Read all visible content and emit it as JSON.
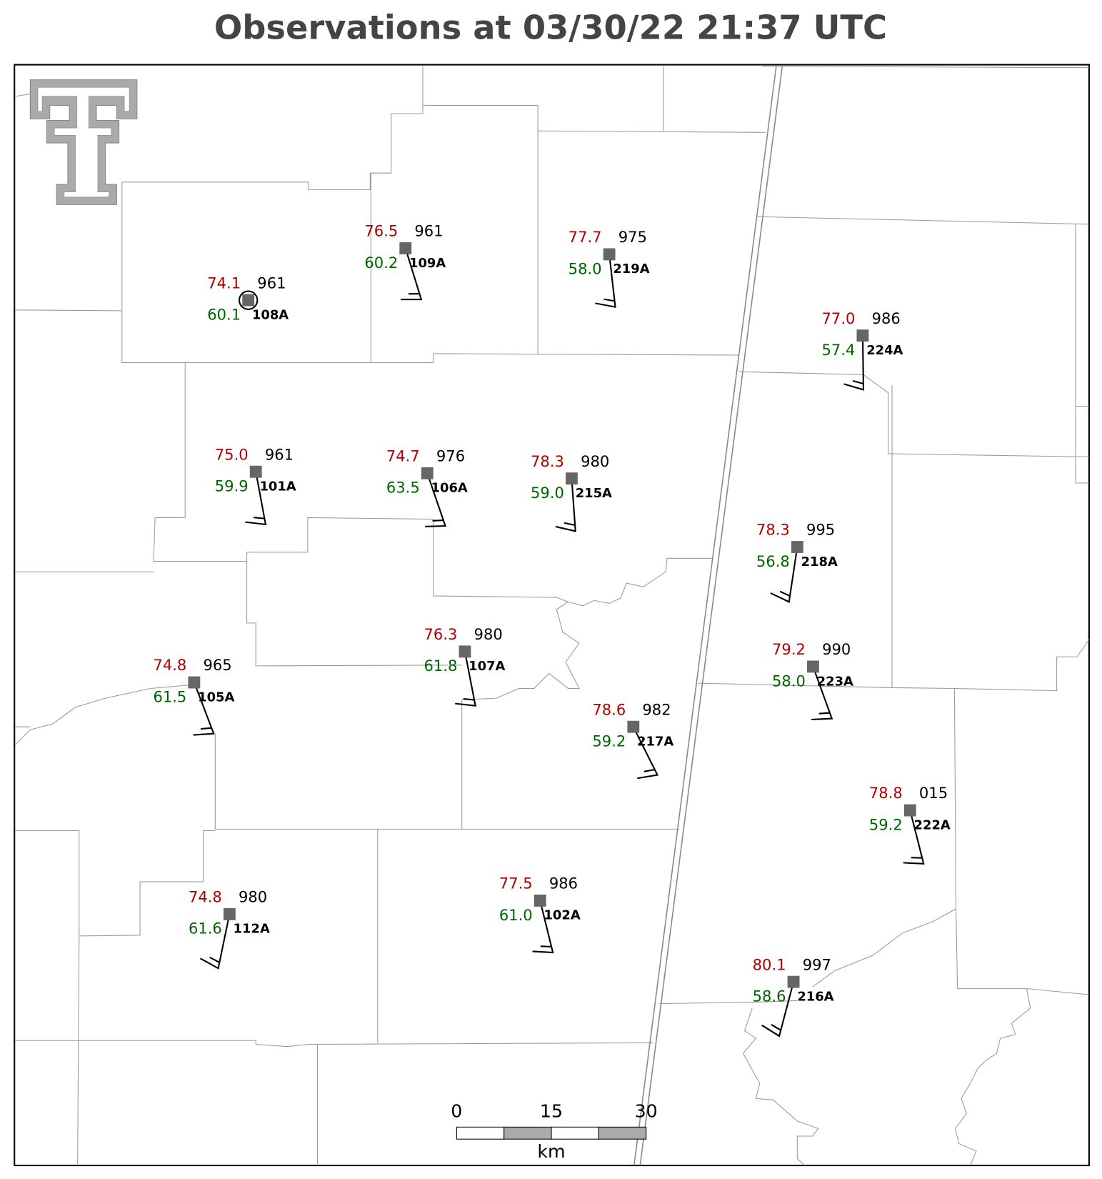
{
  "title": "Observations at 03/30/22 21:37 UTC",
  "stations": [
    {
      "id": "108A",
      "temperature": "74.1",
      "dewpoint": "60.1",
      "pressure": "961"
    },
    {
      "id": "109A",
      "temperature": "76.5",
      "dewpoint": "60.2",
      "pressure": "961"
    },
    {
      "id": "219A",
      "temperature": "77.7",
      "dewpoint": "58.0",
      "pressure": "975"
    },
    {
      "id": "224A",
      "temperature": "77.0",
      "dewpoint": "57.4",
      "pressure": "986"
    },
    {
      "id": "101A",
      "temperature": "75.0",
      "dewpoint": "59.9",
      "pressure": "961"
    },
    {
      "id": "106A",
      "temperature": "74.7",
      "dewpoint": "63.5",
      "pressure": "976"
    },
    {
      "id": "215A",
      "temperature": "78.3",
      "dewpoint": "59.0",
      "pressure": "980"
    },
    {
      "id": "218A",
      "temperature": "78.3",
      "dewpoint": "56.8",
      "pressure": "995"
    },
    {
      "id": "223A",
      "temperature": "79.2",
      "dewpoint": "58.0",
      "pressure": "990"
    },
    {
      "id": "107A",
      "temperature": "76.3",
      "dewpoint": "61.8",
      "pressure": "980"
    },
    {
      "id": "105A",
      "temperature": "74.8",
      "dewpoint": "61.5",
      "pressure": "965"
    },
    {
      "id": "217A",
      "temperature": "78.6",
      "dewpoint": "59.2",
      "pressure": "982"
    },
    {
      "id": "222A",
      "temperature": "78.8",
      "dewpoint": "59.2",
      "pressure": "015"
    },
    {
      "id": "112A",
      "temperature": "74.8",
      "dewpoint": "61.6",
      "pressure": "980"
    },
    {
      "id": "102A",
      "temperature": "77.5",
      "dewpoint": "61.0",
      "pressure": "986"
    },
    {
      "id": "216A",
      "temperature": "80.1",
      "dewpoint": "58.6",
      "pressure": "997"
    }
  ],
  "scale_bar": {
    "ticks": [
      "0",
      "15",
      "30"
    ],
    "unit": "km"
  }
}
